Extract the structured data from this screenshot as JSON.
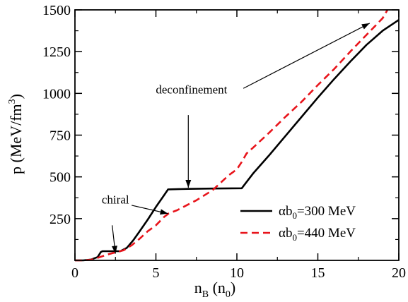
{
  "chart_data": {
    "type": "line",
    "xlabel": {
      "main": "n",
      "sub": "B",
      "rest": " (n",
      "sub2": "0",
      "end": ")"
    },
    "ylabel": {
      "main": "p (MeV/fm",
      "sup": "3",
      "end": ")"
    },
    "xlim": [
      0,
      20
    ],
    "ylim": [
      0,
      1500
    ],
    "xticks": [
      0,
      5,
      10,
      15,
      20
    ],
    "yticks": [
      250,
      500,
      750,
      1000,
      1250,
      1500
    ],
    "xtick_labels": [
      "0",
      "5",
      "10",
      "15",
      "20"
    ],
    "ytick_labels": [
      "250",
      "500",
      "750",
      "1000",
      "1250",
      "1500"
    ],
    "grid": false,
    "legend_position": "bottom-right",
    "series": [
      {
        "name": "αb0=300 MeV",
        "label_parts": {
          "pre": "αb",
          "sub": "0",
          "post": "=300 MeV"
        },
        "color": "#000000",
        "style": "solid",
        "points": [
          [
            0,
            0
          ],
          [
            0.5,
            0
          ],
          [
            1.0,
            5
          ],
          [
            1.4,
            20
          ],
          [
            1.6,
            50
          ],
          [
            1.7,
            55
          ],
          [
            2.8,
            55
          ],
          [
            3.2,
            75
          ],
          [
            3.6,
            120
          ],
          [
            4.0,
            175
          ],
          [
            4.5,
            245
          ],
          [
            5.0,
            320
          ],
          [
            5.5,
            390
          ],
          [
            5.75,
            425
          ],
          [
            7,
            428
          ],
          [
            8.5,
            430
          ],
          [
            10.3,
            432
          ],
          [
            11,
            520
          ],
          [
            12,
            630
          ],
          [
            13,
            745
          ],
          [
            14,
            860
          ],
          [
            15,
            975
          ],
          [
            16,
            1085
          ],
          [
            17,
            1190
          ],
          [
            18,
            1290
          ],
          [
            19,
            1375
          ],
          [
            20,
            1440
          ]
        ]
      },
      {
        "name": "αb0=440 MeV",
        "label_parts": {
          "pre": "αb",
          "sub": "0",
          "post": "=440 MeV"
        },
        "color": "#e8141b",
        "style": "dashed",
        "points": [
          [
            0,
            0
          ],
          [
            0.5,
            0
          ],
          [
            1.0,
            4
          ],
          [
            1.5,
            18
          ],
          [
            2.0,
            35
          ],
          [
            2.5,
            48
          ],
          [
            3.0,
            60
          ],
          [
            3.5,
            90
          ],
          [
            4.0,
            130
          ],
          [
            4.5,
            175
          ],
          [
            5.0,
            210
          ],
          [
            5.5,
            260
          ],
          [
            5.8,
            282
          ],
          [
            6.3,
            300
          ],
          [
            7,
            335
          ],
          [
            7.5,
            360
          ],
          [
            8,
            390
          ],
          [
            8.5,
            420
          ],
          [
            9,
            465
          ],
          [
            9.5,
            510
          ],
          [
            10,
            545
          ],
          [
            10.3,
            590
          ],
          [
            10.6,
            640
          ],
          [
            11,
            675
          ],
          [
            12,
            765
          ],
          [
            13,
            860
          ],
          [
            14,
            950
          ],
          [
            15,
            1050
          ],
          [
            16,
            1145
          ],
          [
            17,
            1250
          ],
          [
            18,
            1350
          ],
          [
            18.5,
            1400
          ],
          [
            19,
            1450
          ],
          [
            19.3,
            1500
          ]
        ]
      }
    ],
    "annotations": [
      {
        "text": "chiral",
        "x": 2.5,
        "y": 340
      },
      {
        "text": "deconfinement",
        "x": 7.2,
        "y": 1000
      }
    ],
    "arrows": [
      {
        "from": [
          2.3,
          210
        ],
        "to": [
          2.5,
          40
        ]
      },
      {
        "from": [
          3.5,
          330
        ],
        "to": [
          5.75,
          280
        ]
      },
      {
        "from": [
          7.0,
          870
        ],
        "to": [
          7.0,
          435
        ]
      },
      {
        "from": [
          10.4,
          1030
        ],
        "to": [
          18.2,
          1420
        ]
      }
    ]
  }
}
